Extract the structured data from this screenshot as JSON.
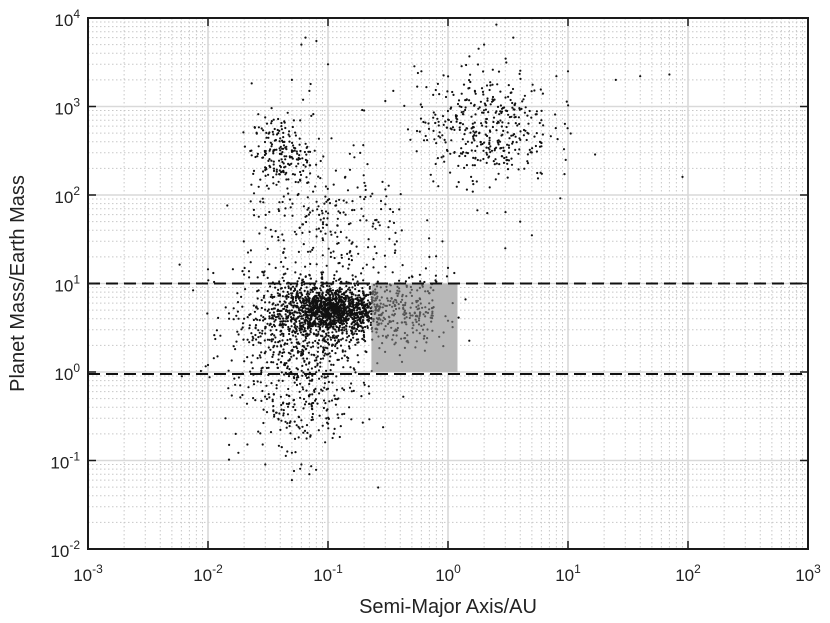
{
  "chart_data": {
    "type": "scatter",
    "title": "",
    "xlabel": "Semi-Major Axis/AU",
    "ylabel": "Planet Mass/Earth Mass",
    "x_scale": "log",
    "y_scale": "log",
    "xlim": [
      0.001,
      1000
    ],
    "ylim": [
      0.01,
      10000
    ],
    "grid": true,
    "minor_grid": true,
    "x_ticks": [
      {
        "base": "10",
        "exp": "-3"
      },
      {
        "base": "10",
        "exp": "-2"
      },
      {
        "base": "10",
        "exp": "-1"
      },
      {
        "base": "10",
        "exp": "0"
      },
      {
        "base": "10",
        "exp": "1"
      },
      {
        "base": "10",
        "exp": "2"
      },
      {
        "base": "10",
        "exp": "3"
      }
    ],
    "y_ticks": [
      {
        "base": "10",
        "exp": "-2"
      },
      {
        "base": "10",
        "exp": "-1"
      },
      {
        "base": "10",
        "exp": "0"
      },
      {
        "base": "10",
        "exp": "1"
      },
      {
        "base": "10",
        "exp": "2"
      },
      {
        "base": "10",
        "exp": "3"
      },
      {
        "base": "10",
        "exp": "4"
      }
    ],
    "reference_lines": [
      {
        "orientation": "horizontal",
        "y": 10,
        "style": "dashed",
        "color": "#111111"
      },
      {
        "orientation": "horizontal",
        "y": 0.95,
        "style": "dashed",
        "color": "#111111"
      }
    ],
    "shaded_region": {
      "x": [
        0.23,
        1.2
      ],
      "y": [
        1,
        10
      ],
      "color": "#b8b8b8"
    },
    "series": [
      {
        "color": "#111111",
        "clusters": [
          {
            "x_center": 0.11,
            "y_center": 5,
            "x_spread": 0.22,
            "y_spread": 0.13,
            "count": 1300
          },
          {
            "x_center": 0.06,
            "y_center": 3,
            "x_spread": 0.3,
            "y_spread": 0.35,
            "count": 700
          },
          {
            "x_center": 0.04,
            "y_center": 300,
            "x_spread": 0.12,
            "y_spread": 0.22,
            "count": 180
          },
          {
            "x_center": 2.0,
            "y_center": 600,
            "x_spread": 0.28,
            "y_spread": 0.32,
            "count": 420
          },
          {
            "x_center": 0.1,
            "y_center": 40,
            "x_spread": 0.35,
            "y_spread": 0.5,
            "count": 300
          },
          {
            "x_center": 0.5,
            "y_center": 5,
            "x_spread": 0.15,
            "y_spread": 0.2,
            "count": 180
          },
          {
            "x_center": 0.06,
            "y_center": 0.4,
            "x_spread": 0.25,
            "y_spread": 0.3,
            "count": 200
          }
        ],
        "points": [
          {
            "x": 0.02,
            "y": 4
          },
          {
            "x": 0.025,
            "y": 4
          },
          {
            "x": 0.03,
            "y": 4
          },
          {
            "x": 0.035,
            "y": 4
          },
          {
            "x": 0.04,
            "y": 4
          },
          {
            "x": 0.045,
            "y": 4
          },
          {
            "x": 0.05,
            "y": 4
          },
          {
            "x": 0.055,
            "y": 4
          },
          {
            "x": 0.06,
            "y": 4
          },
          {
            "x": 0.015,
            "y": 4
          },
          {
            "x": 0.018,
            "y": 4
          },
          {
            "x": 0.04,
            "y": 320
          },
          {
            "x": 0.045,
            "y": 330
          },
          {
            "x": 0.05,
            "y": 320
          },
          {
            "x": 0.055,
            "y": 310
          },
          {
            "x": 0.035,
            "y": 310
          },
          {
            "x": 0.012,
            "y": 1.5
          },
          {
            "x": 0.01,
            "y": 1.2
          },
          {
            "x": 0.014,
            "y": 0.3
          },
          {
            "x": 0.015,
            "y": 0.15
          },
          {
            "x": 0.017,
            "y": 0.2
          },
          {
            "x": 0.03,
            "y": 0.09
          },
          {
            "x": 0.05,
            "y": 0.06
          },
          {
            "x": 0.07,
            "y": 0.07
          },
          {
            "x": 0.06,
            "y": 0.09
          },
          {
            "x": 0.06,
            "y": 5000
          },
          {
            "x": 0.065,
            "y": 6000
          },
          {
            "x": 0.08,
            "y": 5500
          },
          {
            "x": 0.05,
            "y": 2000
          },
          {
            "x": 0.07,
            "y": 1500
          },
          {
            "x": 0.1,
            "y": 3000
          },
          {
            "x": 2.0,
            "y": 5000
          },
          {
            "x": 3.5,
            "y": 6000
          },
          {
            "x": 1.8,
            "y": 4500
          },
          {
            "x": 8,
            "y": 2200
          },
          {
            "x": 10,
            "y": 2500
          },
          {
            "x": 25,
            "y": 2000
          },
          {
            "x": 40,
            "y": 2200
          },
          {
            "x": 70,
            "y": 2300
          },
          {
            "x": 90,
            "y": 160
          },
          {
            "x": 6,
            "y": 700
          },
          {
            "x": 5.5,
            "y": 500
          },
          {
            "x": 4,
            "y": 50
          },
          {
            "x": 3,
            "y": 25
          },
          {
            "x": 5,
            "y": 35
          },
          {
            "x": 2.5,
            "y": 150
          },
          {
            "x": 0.6,
            "y": 2500
          },
          {
            "x": 0.35,
            "y": 1500
          },
          {
            "x": 0.2,
            "y": 900
          },
          {
            "x": 0.9,
            "y": 30
          },
          {
            "x": 1.0,
            "y": 15
          },
          {
            "x": 0.7,
            "y": 20
          }
        ]
      }
    ]
  }
}
